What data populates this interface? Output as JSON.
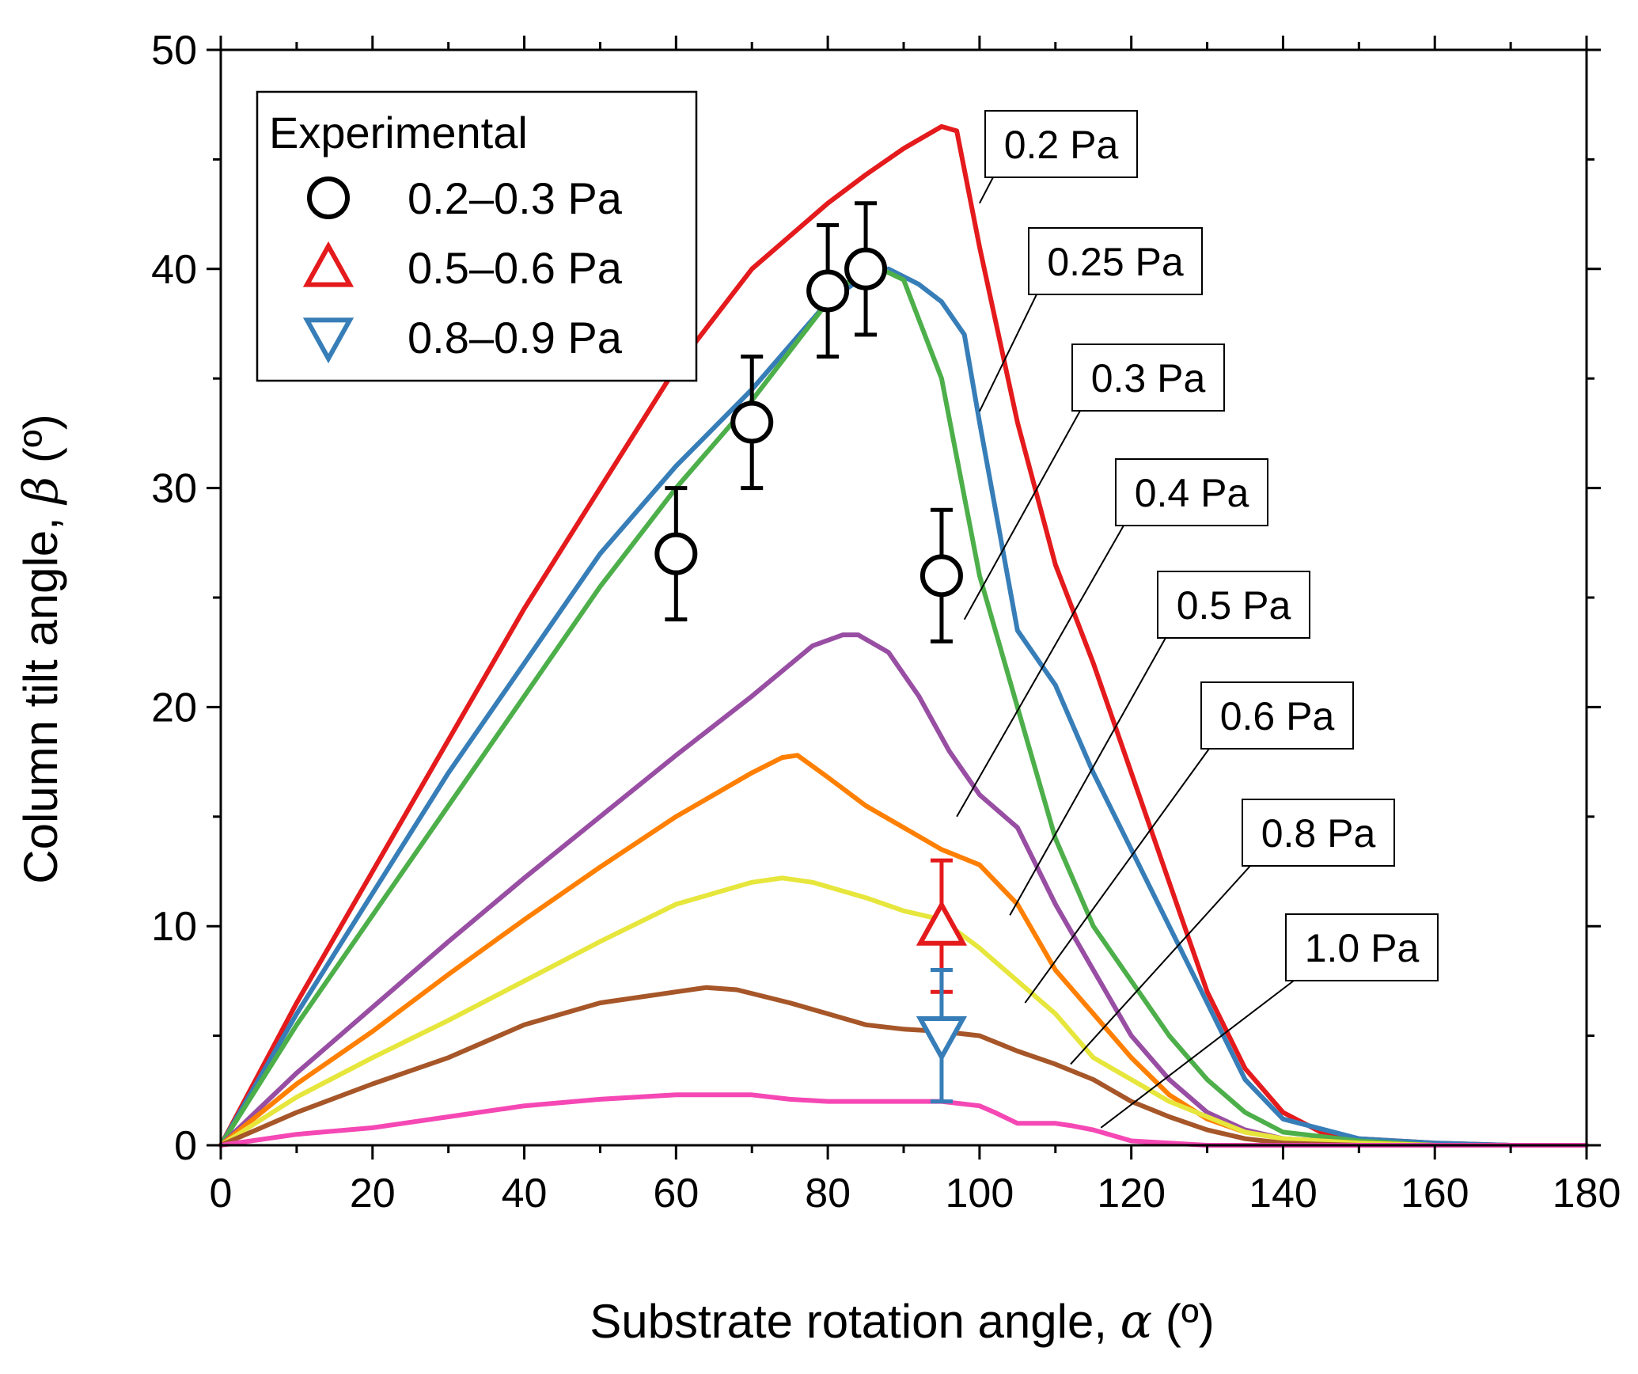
{
  "chart_data": {
    "type": "line",
    "title": "",
    "xlabel": "Substrate rotation angle, ",
    "xlabel_symbol": "α",
    "xlabel_unit": " (º)",
    "ylabel": "Column tilt angle, ",
    "ylabel_symbol": "β",
    "ylabel_unit": " (º)",
    "xlim": [
      0,
      180
    ],
    "ylim": [
      0,
      50
    ],
    "xticks": [
      0,
      20,
      40,
      60,
      80,
      100,
      120,
      140,
      160,
      180
    ],
    "yticks": [
      0,
      10,
      20,
      30,
      40,
      50
    ],
    "xtick_labels": [
      "0",
      "20",
      "40",
      "60",
      "80",
      "100",
      "120",
      "140",
      "160",
      "180"
    ],
    "ytick_labels": [
      "0",
      "10",
      "20",
      "30",
      "40",
      "50"
    ],
    "grid": false,
    "legend_position": "top-left",
    "legend_title": "Experimental",
    "series": [
      {
        "name": "0.2 Pa",
        "color": "#e41a1c",
        "x": [
          0,
          10,
          20,
          30,
          40,
          50,
          60,
          70,
          80,
          85,
          90,
          95,
          97,
          100,
          105,
          110,
          115,
          120,
          125,
          130,
          135,
          140,
          145,
          150,
          160,
          170,
          180
        ],
        "y": [
          0,
          6.5,
          12.5,
          18.5,
          24.5,
          30,
          35.5,
          40,
          43,
          44.3,
          45.5,
          46.5,
          46.3,
          41,
          33,
          26.5,
          22,
          17,
          12,
          7,
          3.5,
          1.5,
          0.6,
          0.3,
          0.1,
          0,
          0
        ]
      },
      {
        "name": "0.25 Pa",
        "color": "#377eb8",
        "x": [
          0,
          10,
          20,
          30,
          40,
          50,
          60,
          70,
          80,
          85,
          88,
          92,
          95,
          98,
          100,
          105,
          110,
          115,
          120,
          125,
          130,
          135,
          140,
          150,
          160,
          170,
          180
        ],
        "y": [
          0,
          6,
          11.5,
          17,
          22,
          27,
          31,
          34.5,
          38.5,
          39.7,
          40,
          39.3,
          38.5,
          37,
          33,
          23.5,
          21,
          17,
          13.5,
          10,
          6.5,
          3,
          1.2,
          0.3,
          0.1,
          0,
          0
        ]
      },
      {
        "name": "0.3 Pa",
        "color": "#4daf4a",
        "x": [
          0,
          10,
          20,
          30,
          40,
          50,
          60,
          70,
          80,
          84,
          87,
          90,
          95,
          100,
          105,
          110,
          115,
          120,
          125,
          130,
          135,
          140,
          150,
          160,
          170,
          180
        ],
        "y": [
          0,
          5.5,
          10.5,
          15.5,
          20.5,
          25.5,
          30,
          34,
          38.5,
          39.8,
          40,
          39.5,
          35,
          26,
          20,
          14,
          10,
          7.5,
          5,
          3,
          1.5,
          0.6,
          0.2,
          0,
          0,
          0
        ]
      },
      {
        "name": "0.4 Pa",
        "color": "#984ea3",
        "x": [
          0,
          10,
          20,
          30,
          40,
          50,
          60,
          70,
          78,
          82,
          84,
          88,
          92,
          96,
          100,
          105,
          110,
          115,
          120,
          125,
          130,
          135,
          140,
          150,
          160,
          170,
          180
        ],
        "y": [
          0,
          3.3,
          6.3,
          9.3,
          12.2,
          15,
          17.8,
          20.5,
          22.8,
          23.3,
          23.3,
          22.5,
          20.5,
          18,
          16,
          14.5,
          11,
          8,
          5,
          3,
          1.5,
          0.7,
          0.3,
          0.1,
          0,
          0,
          0
        ]
      },
      {
        "name": "0.5 Pa",
        "color": "#ff7f00",
        "x": [
          0,
          10,
          20,
          30,
          40,
          50,
          60,
          70,
          74,
          76,
          80,
          85,
          90,
          95,
          100,
          105,
          110,
          115,
          120,
          125,
          130,
          135,
          140,
          150,
          160,
          170,
          180
        ],
        "y": [
          0,
          2.8,
          5.2,
          7.8,
          10.3,
          12.7,
          15,
          17,
          17.7,
          17.8,
          16.8,
          15.5,
          14.5,
          13.5,
          12.8,
          11,
          8,
          6,
          4,
          2.3,
          1.2,
          0.6,
          0.3,
          0.1,
          0,
          0,
          0
        ]
      },
      {
        "name": "0.6 Pa",
        "color": "#e6e63c",
        "x": [
          0,
          10,
          20,
          30,
          40,
          50,
          60,
          70,
          74,
          78,
          85,
          90,
          95,
          100,
          105,
          110,
          115,
          120,
          125,
          130,
          135,
          140,
          150,
          160,
          170,
          180
        ],
        "y": [
          0,
          2.2,
          4,
          5.7,
          7.5,
          9.3,
          11,
          12,
          12.2,
          12,
          11.3,
          10.7,
          10.3,
          9,
          7.5,
          6,
          4,
          3,
          2,
          1.3,
          0.6,
          0.3,
          0.1,
          0,
          0,
          0
        ]
      },
      {
        "name": "0.8 Pa",
        "color": "#a65628",
        "x": [
          0,
          10,
          20,
          30,
          40,
          50,
          60,
          64,
          68,
          75,
          80,
          85,
          90,
          95,
          100,
          105,
          110,
          115,
          120,
          125,
          130,
          135,
          140,
          150,
          160,
          170,
          180
        ],
        "y": [
          0,
          1.5,
          2.8,
          4,
          5.5,
          6.5,
          7,
          7.2,
          7.1,
          6.5,
          6,
          5.5,
          5.3,
          5.2,
          5,
          4.3,
          3.7,
          3,
          2,
          1.3,
          0.7,
          0.3,
          0.1,
          0,
          0,
          0,
          0
        ]
      },
      {
        "name": "1.0 Pa",
        "color": "#f548b4",
        "x": [
          0,
          10,
          20,
          30,
          40,
          50,
          60,
          65,
          70,
          75,
          80,
          90,
          95,
          100,
          102,
          105,
          110,
          112,
          115,
          118,
          120,
          125,
          130,
          140,
          150,
          160,
          170,
          180
        ],
        "y": [
          0,
          0.5,
          0.8,
          1.3,
          1.8,
          2.1,
          2.3,
          2.3,
          2.3,
          2.1,
          2,
          2,
          2,
          1.8,
          1.5,
          1,
          1,
          0.9,
          0.7,
          0.4,
          0.2,
          0.1,
          0,
          0,
          0,
          0,
          0,
          0
        ]
      }
    ],
    "callouts": [
      {
        "label": "0.2 Pa",
        "series": "0.2 Pa",
        "anchor_x": 100,
        "anchor_y": 43
      },
      {
        "label": "0.25 Pa",
        "series": "0.25 Pa",
        "anchor_x": 100,
        "anchor_y": 33.5
      },
      {
        "label": "0.3 Pa",
        "series": "0.3 Pa",
        "anchor_x": 98,
        "anchor_y": 24
      },
      {
        "label": "0.4 Pa",
        "series": "0.4 Pa",
        "anchor_x": 97,
        "anchor_y": 15
      },
      {
        "label": "0.5 Pa",
        "series": "0.5 Pa",
        "anchor_x": 104,
        "anchor_y": 10.5
      },
      {
        "label": "0.6 Pa",
        "series": "0.6 Pa",
        "anchor_x": 106,
        "anchor_y": 6.5
      },
      {
        "label": "0.8 Pa",
        "series": "0.8 Pa",
        "anchor_x": 112,
        "anchor_y": 3.7
      },
      {
        "label": "1.0 Pa",
        "series": "1.0 Pa",
        "anchor_x": 116,
        "anchor_y": 0.8
      }
    ],
    "experimental": [
      {
        "name": "0.2–0.3 Pa",
        "marker": "circle",
        "color": "#000000",
        "points": [
          {
            "x": 60,
            "y": 27,
            "err": 3
          },
          {
            "x": 70,
            "y": 33,
            "err": 3
          },
          {
            "x": 80,
            "y": 39,
            "err": 3
          },
          {
            "x": 85,
            "y": 40,
            "err": 3
          },
          {
            "x": 95,
            "y": 26,
            "err": 3
          }
        ]
      },
      {
        "name": "0.5–0.6 Pa",
        "marker": "triangle-up",
        "color": "#e41a1c",
        "points": [
          {
            "x": 95,
            "y": 10,
            "err_low": 3,
            "err_high": 3
          }
        ]
      },
      {
        "name": "0.8–0.9 Pa",
        "marker": "triangle-down",
        "color": "#377eb8",
        "points": [
          {
            "x": 95,
            "y": 5,
            "err_low": 3,
            "err_high": 3
          }
        ]
      }
    ]
  }
}
